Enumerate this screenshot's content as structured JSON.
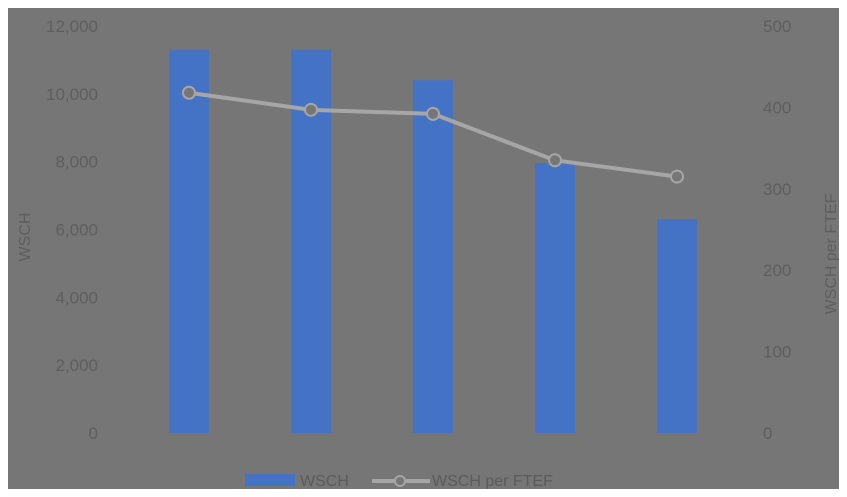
{
  "chart_data": {
    "type": "bar",
    "categories": [
      "",
      "",
      "",
      "",
      ""
    ],
    "series": [
      {
        "name": "WSCH",
        "type": "bar",
        "axis": "left",
        "color": "#4472c4",
        "values": [
          11300,
          11300,
          10400,
          7950,
          6300
        ]
      },
      {
        "name": "WSCH per FTEF",
        "type": "line",
        "axis": "right",
        "color": "#a6a6a6",
        "marker": "circle",
        "values": [
          418,
          397,
          392,
          335,
          315
        ]
      }
    ],
    "y_left": {
      "label": "WSCH",
      "ylim": [
        0,
        12000
      ],
      "ticks": [
        "0",
        "2,000",
        "4,000",
        "6,000",
        "8,000",
        "10,000",
        "12,000"
      ]
    },
    "y_right": {
      "label": "WSCH per FTEF",
      "ylim": [
        0,
        500
      ],
      "ticks": [
        "0",
        "100",
        "200",
        "300",
        "400",
        "500"
      ]
    },
    "grid": false,
    "legend": "bottom",
    "background": "#767676"
  }
}
